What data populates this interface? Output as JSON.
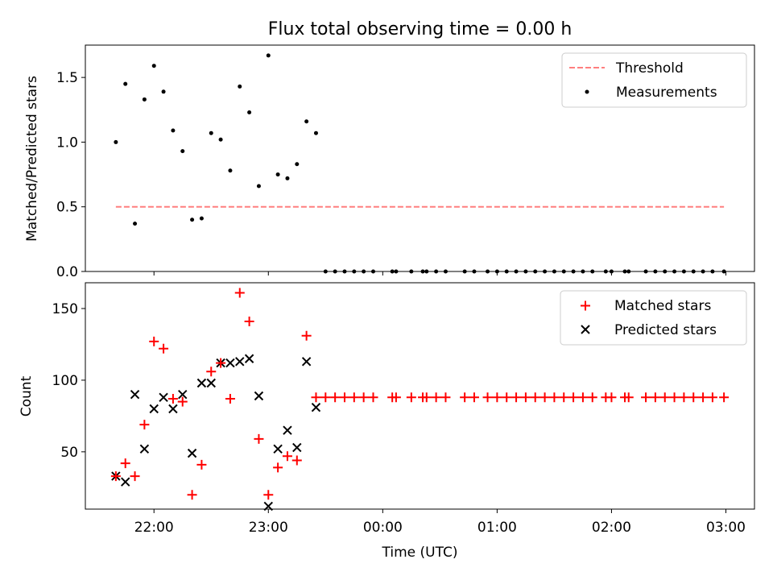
{
  "chart_data": [
    {
      "type": "scatter",
      "title": "Flux total observing time = 0.00 h",
      "xlabel": "",
      "ylabel": "Matched/Predicted stars",
      "ylim": [
        0,
        1.75
      ],
      "xlim": [
        "21:24",
        "03:15"
      ],
      "yticks": [
        "0.0",
        "0.5",
        "1.0",
        "1.5"
      ],
      "xticks_labels_shown": false,
      "legend_position": "top-right",
      "threshold": {
        "name": "Threshold",
        "x_start": "21:40",
        "x_end": "02:59",
        "y": 0.5,
        "style": "dashed",
        "color": "#ff7f7f"
      },
      "series": [
        {
          "name": "Measurements",
          "color": "#000000",
          "marker": "dot",
          "x": [
            "21:40",
            "21:45",
            "21:50",
            "21:55",
            "22:00",
            "22:05",
            "22:10",
            "22:15",
            "22:20",
            "22:25",
            "22:30",
            "22:35",
            "22:40",
            "22:45",
            "22:50",
            "22:55",
            "23:00",
            "23:05",
            "23:10",
            "23:15",
            "23:20",
            "23:25",
            "23:30",
            "23:35",
            "23:40",
            "23:45",
            "23:50",
            "23:55",
            "00:05",
            "00:07",
            "00:15",
            "00:21",
            "00:23",
            "00:28",
            "00:33",
            "00:43",
            "00:48",
            "00:55",
            "01:00",
            "01:05",
            "01:10",
            "01:15",
            "01:20",
            "01:25",
            "01:30",
            "01:35",
            "01:40",
            "01:45",
            "01:50",
            "01:57",
            "02:00",
            "02:07",
            "02:09",
            "02:18",
            "02:23",
            "02:28",
            "02:33",
            "02:38",
            "02:43",
            "02:48",
            "02:53",
            "02:59"
          ],
          "y": [
            1.0,
            1.45,
            0.37,
            1.33,
            1.59,
            1.39,
            1.09,
            0.93,
            0.4,
            0.41,
            1.07,
            1.02,
            0.78,
            1.43,
            1.23,
            0.66,
            1.67,
            0.75,
            0.72,
            0.83,
            1.16,
            1.07,
            0,
            0,
            0,
            0,
            0,
            0,
            0,
            0,
            0,
            0,
            0,
            0,
            0,
            0,
            0,
            0,
            0,
            0,
            0,
            0,
            0,
            0,
            0,
            0,
            0,
            0,
            0,
            0,
            0,
            0,
            0,
            0,
            0,
            0,
            0,
            0,
            0,
            0,
            0,
            0
          ]
        }
      ]
    },
    {
      "type": "scatter",
      "title": "",
      "xlabel": "Time (UTC)",
      "ylabel": "Count",
      "ylim": [
        10,
        168
      ],
      "xlim": [
        "21:24",
        "03:15"
      ],
      "yticks": [
        "50",
        "100",
        "150"
      ],
      "xticks": [
        "22:00",
        "23:00",
        "00:00",
        "01:00",
        "02:00",
        "03:00"
      ],
      "legend_position": "top-right",
      "series": [
        {
          "name": "Matched stars",
          "color": "#ff0000",
          "marker": "plus",
          "x": [
            "21:40",
            "21:45",
            "21:50",
            "21:55",
            "22:00",
            "22:05",
            "22:10",
            "22:15",
            "22:20",
            "22:25",
            "22:30",
            "22:35",
            "22:40",
            "22:45",
            "22:50",
            "22:55",
            "23:00",
            "23:05",
            "23:10",
            "23:15",
            "23:20",
            "23:25",
            "23:30",
            "23:35",
            "23:40",
            "23:45",
            "23:50",
            "23:55",
            "00:05",
            "00:07",
            "00:15",
            "00:21",
            "00:23",
            "00:28",
            "00:33",
            "00:43",
            "00:48",
            "00:55",
            "01:00",
            "01:05",
            "01:10",
            "01:15",
            "01:20",
            "01:25",
            "01:30",
            "01:35",
            "01:40",
            "01:45",
            "01:50",
            "01:57",
            "02:00",
            "02:07",
            "02:09",
            "02:18",
            "02:23",
            "02:28",
            "02:33",
            "02:38",
            "02:43",
            "02:48",
            "02:53",
            "02:59"
          ],
          "y": [
            33,
            42,
            33,
            69,
            127,
            122,
            87,
            85,
            20,
            41,
            106,
            112,
            87,
            161,
            141,
            59,
            20,
            39,
            47,
            44,
            131,
            88,
            88,
            88,
            88,
            88,
            88,
            88,
            88,
            88,
            88,
            88,
            88,
            88,
            88,
            88,
            88,
            88,
            88,
            88,
            88,
            88,
            88,
            88,
            88,
            88,
            88,
            88,
            88,
            88,
            88,
            88,
            88,
            88,
            88,
            88,
            88,
            88,
            88,
            88,
            88,
            88
          ]
        },
        {
          "name": "Predicted stars",
          "color": "#000000",
          "marker": "x",
          "x": [
            "21:40",
            "21:45",
            "21:50",
            "21:55",
            "22:00",
            "22:05",
            "22:10",
            "22:15",
            "22:20",
            "22:25",
            "22:30",
            "22:35",
            "22:40",
            "22:45",
            "22:50",
            "22:55",
            "23:00",
            "23:05",
            "23:10",
            "23:15",
            "23:20",
            "23:25"
          ],
          "y": [
            33,
            29,
            90,
            52,
            80,
            88,
            80,
            90,
            49,
            98,
            98,
            112,
            112,
            113,
            115,
            89,
            12,
            52,
            65,
            53,
            113,
            81
          ]
        }
      ]
    }
  ]
}
